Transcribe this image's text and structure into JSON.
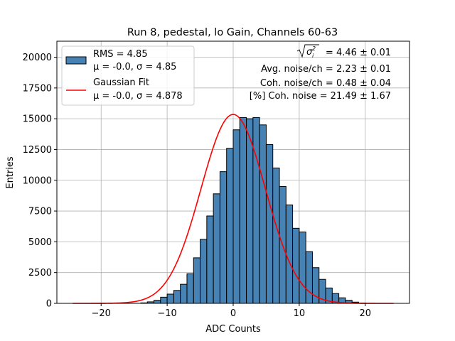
{
  "chart_data": {
    "type": "bar",
    "title": "Run 8, pedestal, lo Gain, Channels 60-63",
    "xlabel": "ADC Counts",
    "ylabel": "Entries",
    "xlim": [
      -26.7,
      26.7
    ],
    "ylim": [
      0,
      21300
    ],
    "xticks": [
      -20,
      -10,
      0,
      10,
      20
    ],
    "yticks": [
      0,
      2500,
      5000,
      7500,
      10000,
      12500,
      15000,
      17500,
      20000
    ],
    "grid": true,
    "legend_position": "top-left",
    "bin_width": 1,
    "bin_start": -14,
    "counts": [
      40,
      120,
      250,
      500,
      750,
      1050,
      1550,
      2400,
      3700,
      5200,
      7100,
      8900,
      10700,
      12600,
      14100,
      15100,
      15000,
      15100,
      14500,
      12900,
      11000,
      9500,
      8000,
      6100,
      5800,
      4200,
      2900,
      1950,
      1250,
      800,
      450,
      250,
      100,
      30
    ],
    "series": [
      {
        "name": "RMS = 4.85",
        "name_line2": "μ = -0.0, σ = 4.85",
        "color": "#4682b4",
        "edge": "#000000"
      },
      {
        "name": "Gaussian Fit",
        "name_line2": "μ = -0.0, σ = 4.878",
        "color": "#ff0000"
      }
    ],
    "fit": {
      "mu": 0.0,
      "sigma": 4.878,
      "amplitude": 15350,
      "x_range": [
        -24.3,
        24.3
      ]
    },
    "annotations": [
      "= 4.46 ± 0.01",
      "Avg. noise/ch = 2.23 ± 0.01",
      "Coh. noise/ch = 0.48 ± 0.04",
      "[%] Coh. noise = 21.49 ± 1.67"
    ]
  }
}
